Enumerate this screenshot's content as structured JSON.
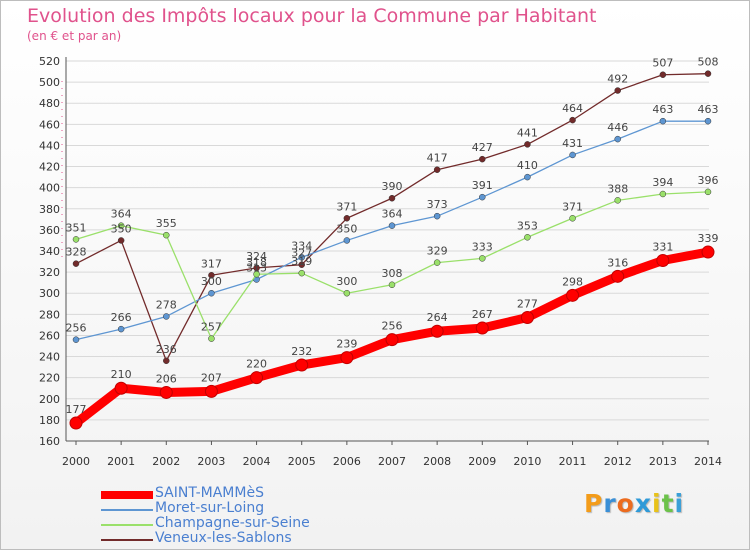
{
  "header": {
    "title": "Evolution des Impôts locaux pour la Commune par Habitant",
    "subtitle": "(en € et par an)"
  },
  "chart_data": {
    "type": "line",
    "categories": [
      "2000",
      "2001",
      "2002",
      "2003",
      "2004",
      "2005",
      "2006",
      "2007",
      "2008",
      "2009",
      "2010",
      "2011",
      "2012",
      "2013",
      "2014"
    ],
    "ylim": [
      160,
      520
    ],
    "yticks": [
      160,
      180,
      200,
      220,
      240,
      260,
      280,
      300,
      320,
      340,
      360,
      380,
      400,
      420,
      440,
      460,
      480,
      500,
      520
    ],
    "grid": "horizontal",
    "legend_position": "bottom-left",
    "series": [
      {
        "name": "Veneux-les-Sablons",
        "color": "#722b2b",
        "values": [
          328,
          350,
          236,
          317,
          324,
          327,
          371,
          390,
          417,
          427,
          441,
          464,
          492,
          507,
          508
        ]
      },
      {
        "name": "Moret-sur-Loing",
        "color": "#5e96d2",
        "values": [
          256,
          266,
          278,
          300,
          313,
          334,
          350,
          364,
          373,
          391,
          410,
          431,
          446,
          463,
          463
        ]
      },
      {
        "name": "Champagne-sur-Seine",
        "color": "#9ae06a",
        "values": [
          351,
          364,
          355,
          257,
          318,
          319,
          300,
          308,
          329,
          333,
          353,
          371,
          388,
          394,
          396
        ]
      },
      {
        "name": "SAINT-MAMMèS",
        "color": "#ff0000",
        "values": [
          177,
          210,
          206,
          207,
          220,
          232,
          239,
          256,
          264,
          267,
          277,
          298,
          316,
          331,
          339
        ]
      }
    ]
  },
  "legend": [
    {
      "label": "SAINT-MAMMèS",
      "color": "#ff0000"
    },
    {
      "label": "Moret-sur-Loing",
      "color": "#5e96d2"
    },
    {
      "label": "Champagne-sur-Seine",
      "color": "#9ae06a"
    },
    {
      "label": "Veneux-les-Sablons",
      "color": "#722b2b"
    }
  ],
  "logo": {
    "letters": [
      {
        "ch": "P",
        "color": "#f39c1a"
      },
      {
        "ch": "r",
        "color": "#3a8fd6"
      },
      {
        "ch": "o",
        "color": "#ec6b1e"
      },
      {
        "ch": "x",
        "color": "#2f9ad8"
      },
      {
        "ch": "i",
        "color": "#e8c21a"
      },
      {
        "ch": "t",
        "color": "#6cc24a"
      },
      {
        "ch": "i",
        "color": "#3aa0d8"
      }
    ]
  }
}
